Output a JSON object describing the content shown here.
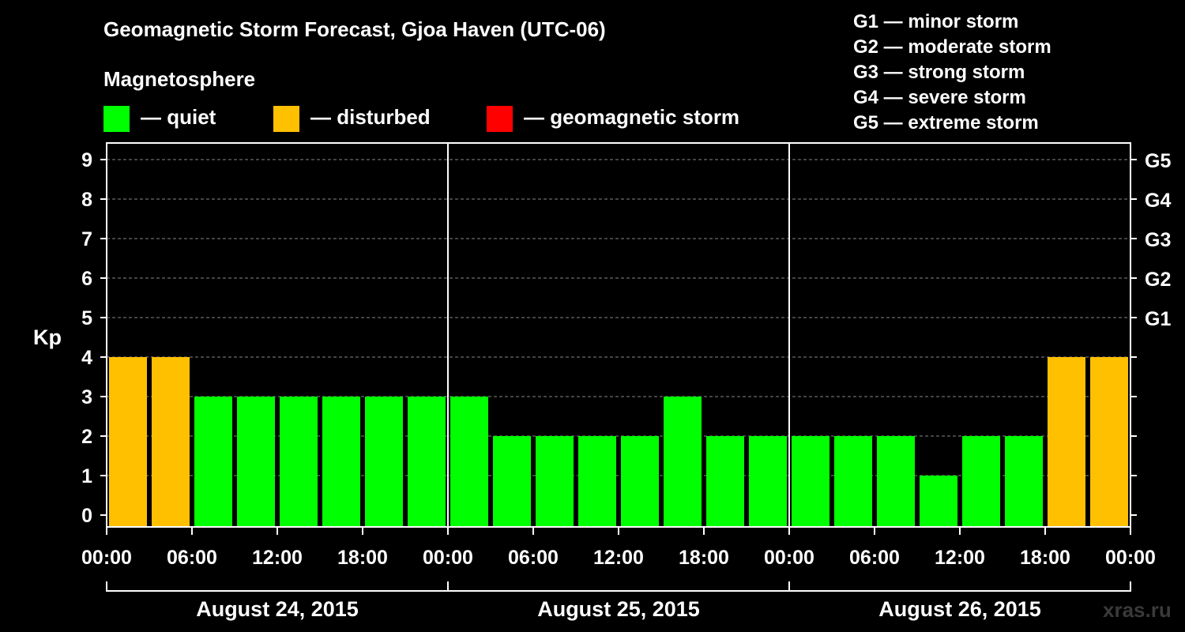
{
  "title": "Geomagnetic Storm Forecast, Gjoa Haven (UTC-06)",
  "magnetosphere_label": "Magnetosphere",
  "legend": [
    {
      "label": "— quiet",
      "color": "#00ff00"
    },
    {
      "label": "— disturbed",
      "color": "#ffc000"
    },
    {
      "label": "— geomagnetic storm",
      "color": "#ff0000"
    }
  ],
  "g_scale": [
    {
      "level": "G1",
      "desc": "G1 — minor storm"
    },
    {
      "level": "G2",
      "desc": "G2 — moderate storm"
    },
    {
      "level": "G3",
      "desc": "G3 — strong storm"
    },
    {
      "level": "G4",
      "desc": "G4 — severe storm"
    },
    {
      "level": "G5",
      "desc": "G5 — extreme storm"
    }
  ],
  "watermark": "xras.ru",
  "chart_data": {
    "type": "bar",
    "ylabel": "Kp",
    "ylim": [
      0,
      9
    ],
    "y_ticks": [
      "0",
      "1",
      "2",
      "3",
      "4",
      "5",
      "6",
      "7",
      "8",
      "9"
    ],
    "right_ticks": [
      {
        "kp": 5,
        "label": "G1"
      },
      {
        "kp": 6,
        "label": "G2"
      },
      {
        "kp": 7,
        "label": "G3"
      },
      {
        "kp": 8,
        "label": "G4"
      },
      {
        "kp": 9,
        "label": "G5"
      }
    ],
    "grid": true,
    "x_tick_labels": [
      "00:00",
      "06:00",
      "12:00",
      "18:00",
      "00:00",
      "06:00",
      "12:00",
      "18:00",
      "00:00",
      "06:00",
      "12:00",
      "18:00",
      "00:00"
    ],
    "days": [
      "August 24, 2015",
      "August 25, 2015",
      "August 26, 2015"
    ],
    "interval_hours": 3,
    "values": [
      4,
      4,
      3,
      3,
      3,
      3,
      3,
      3,
      3,
      2,
      2,
      2,
      2,
      3,
      2,
      2,
      2,
      2,
      2,
      1,
      2,
      2,
      4,
      4
    ],
    "status": [
      "disturbed",
      "disturbed",
      "quiet",
      "quiet",
      "quiet",
      "quiet",
      "quiet",
      "quiet",
      "quiet",
      "quiet",
      "quiet",
      "quiet",
      "quiet",
      "quiet",
      "quiet",
      "quiet",
      "quiet",
      "quiet",
      "quiet",
      "quiet",
      "quiet",
      "quiet",
      "disturbed",
      "disturbed"
    ],
    "status_colors": {
      "quiet": "#00ff00",
      "disturbed": "#ffc000",
      "storm": "#ff0000"
    }
  }
}
